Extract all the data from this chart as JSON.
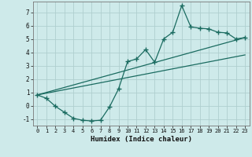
{
  "title": "",
  "xlabel": "Humidex (Indice chaleur)",
  "bg_color": "#ceeaea",
  "grid_color": "#b0cfcf",
  "line_color": "#1a6b60",
  "xlim": [
    -0.5,
    23.5
  ],
  "ylim": [
    -1.5,
    7.8
  ],
  "xticks": [
    0,
    1,
    2,
    3,
    4,
    5,
    6,
    7,
    8,
    9,
    10,
    11,
    12,
    13,
    14,
    15,
    16,
    17,
    18,
    19,
    20,
    21,
    22,
    23
  ],
  "yticks": [
    -1,
    0,
    1,
    2,
    3,
    4,
    5,
    6,
    7
  ],
  "line1_x": [
    0,
    1,
    2,
    3,
    4,
    5,
    6,
    7,
    8,
    9,
    10,
    11,
    12,
    13,
    14,
    15,
    16,
    17,
    18,
    19,
    20,
    21,
    22,
    23
  ],
  "line1_y": [
    0.8,
    0.55,
    -0.05,
    -0.5,
    -0.95,
    -1.1,
    -1.15,
    -1.1,
    -0.1,
    1.25,
    3.3,
    3.5,
    4.2,
    3.25,
    5.0,
    5.5,
    7.5,
    5.9,
    5.8,
    5.75,
    5.5,
    5.45,
    5.0,
    5.1
  ],
  "line2_x": [
    0,
    23
  ],
  "line2_y": [
    0.8,
    5.1
  ],
  "line3_x": [
    0,
    23
  ],
  "line3_y": [
    0.8,
    3.8
  ]
}
